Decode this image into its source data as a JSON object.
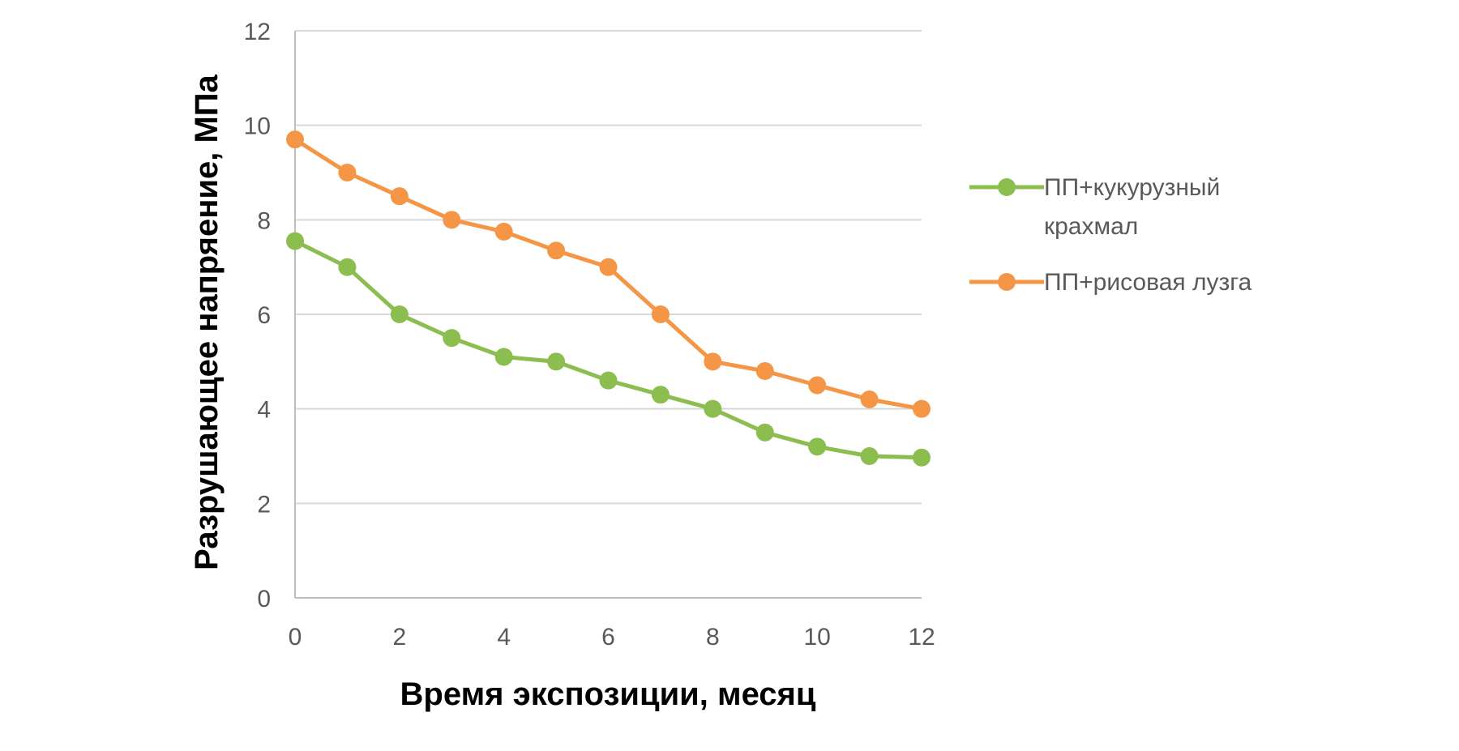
{
  "chart_data": {
    "type": "line",
    "title": "",
    "xlabel": "Время экспозиции, месяц",
    "ylabel": "Разрушающее напряение, МПа",
    "x": [
      0,
      1,
      2,
      3,
      4,
      5,
      6,
      7,
      8,
      9,
      10,
      11,
      12
    ],
    "xlim": [
      0,
      12
    ],
    "ylim": [
      0,
      12
    ],
    "x_ticks": [
      0,
      2,
      4,
      6,
      8,
      10,
      12
    ],
    "y_ticks": [
      0,
      2,
      4,
      6,
      8,
      10,
      12
    ],
    "grid": "horizontal",
    "legend_position": "right",
    "series": [
      {
        "name_lines": [
          "ПП+кукурузный",
          "крахмал"
        ],
        "color": "#8cbd4f",
        "values": [
          7.55,
          7.0,
          6.0,
          5.5,
          5.1,
          5.0,
          4.6,
          4.3,
          4.0,
          3.5,
          3.2,
          3.0,
          2.97
        ]
      },
      {
        "name_lines": [
          "ПП+рисовая лузга"
        ],
        "color": "#f49646",
        "values": [
          9.7,
          9.0,
          8.5,
          8.0,
          7.75,
          7.35,
          7.0,
          6.0,
          5.0,
          4.8,
          4.5,
          4.2,
          4.0
        ]
      }
    ]
  }
}
